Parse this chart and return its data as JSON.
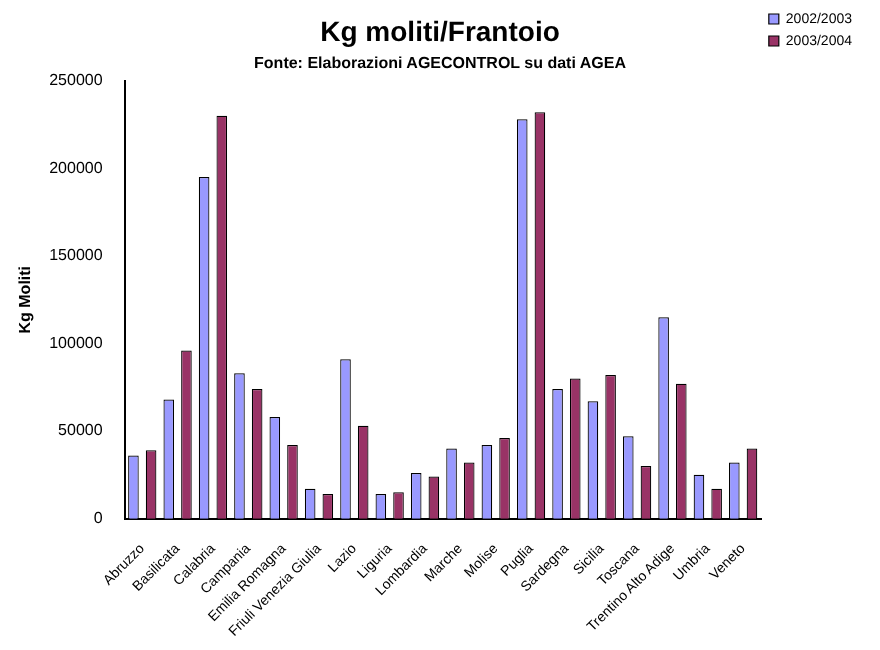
{
  "chart_data": {
    "type": "bar",
    "title": "Kg moliti/Frantoio",
    "subtitle": "Fonte: Elaborazioni AGECONTROL su dati AGEA",
    "ylabel": "Kg Moliti",
    "categories": [
      "Abruzzo",
      "Basilicata",
      "Calabria",
      "Campania",
      "Emilia Romagna",
      "Friuli Venezia Giulia",
      "Lazio",
      "Liguria",
      "Lombardia",
      "Marche",
      "Molise",
      "Puglia",
      "Sardegna",
      "Sicilia",
      "Toscana",
      "Trentino Alto Adige",
      "Umbria",
      "Veneto"
    ],
    "series": [
      {
        "name": "2002/2003",
        "color": "#9999ff",
        "values": [
          36000,
          68000,
          195000,
          83000,
          58000,
          17000,
          91000,
          14000,
          26000,
          40000,
          42000,
          228000,
          74000,
          67000,
          47000,
          115000,
          25000,
          32000
        ]
      },
      {
        "name": "2003/2004",
        "color": "#993366",
        "values": [
          39000,
          96000,
          230000,
          74000,
          42000,
          14000,
          53000,
          15000,
          24000,
          32000,
          46000,
          232000,
          80000,
          82000,
          30000,
          77000,
          17000,
          40000
        ]
      }
    ],
    "ylim": [
      0,
      250000
    ],
    "yticks": [
      0,
      50000,
      100000,
      150000,
      200000,
      250000
    ],
    "grid": false,
    "legend": "top right"
  }
}
